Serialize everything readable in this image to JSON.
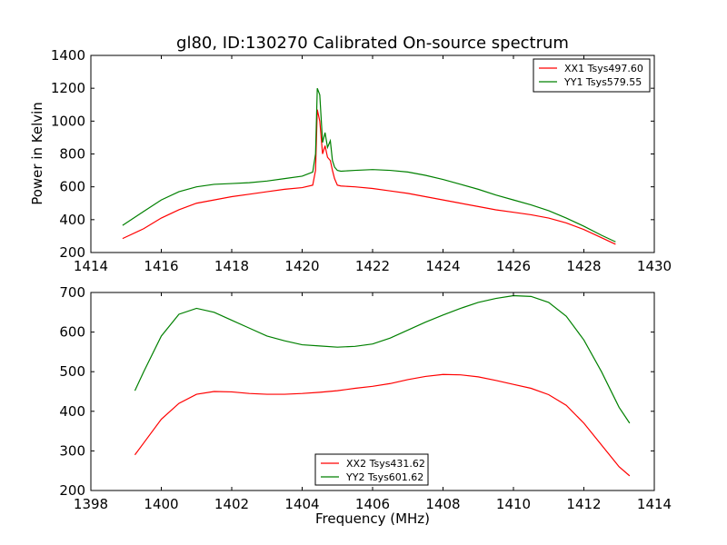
{
  "chart_data": [
    {
      "type": "line",
      "title": "gl80, ID:130270 Calibrated On-source spectrum",
      "xlabel": "",
      "ylabel": "Power in Kelvin",
      "xlim": [
        1414,
        1430
      ],
      "ylim": [
        200,
        1400
      ],
      "xticks": [
        "1414",
        "1416",
        "1418",
        "1420",
        "1422",
        "1424",
        "1426",
        "1428",
        "1430"
      ],
      "yticks": [
        "200",
        "400",
        "600",
        "800",
        "1000",
        "1200",
        "1400"
      ],
      "legend_position": "top-right",
      "grid": false,
      "series": [
        {
          "name": "XX1 Tsys497.60",
          "color": "#ff0000",
          "x": [
            1414.9,
            1415.5,
            1416.0,
            1416.5,
            1417.0,
            1417.5,
            1418.0,
            1418.5,
            1419.0,
            1419.5,
            1420.0,
            1420.3,
            1420.38,
            1420.43,
            1420.5,
            1420.58,
            1420.65,
            1420.72,
            1420.8,
            1420.86,
            1420.92,
            1421.0,
            1421.1,
            1421.5,
            1422.0,
            1422.5,
            1423.0,
            1423.5,
            1424.0,
            1424.5,
            1425.0,
            1425.5,
            1426.0,
            1426.5,
            1427.0,
            1427.5,
            1428.0,
            1428.5,
            1428.9
          ],
          "y": [
            285,
            345,
            410,
            460,
            500,
            520,
            540,
            555,
            570,
            585,
            595,
            610,
            700,
            1070,
            1000,
            800,
            850,
            780,
            760,
            700,
            650,
            610,
            605,
            600,
            590,
            575,
            560,
            540,
            520,
            500,
            480,
            460,
            445,
            430,
            410,
            380,
            340,
            290,
            250
          ]
        },
        {
          "name": "YY1 Tsys579.55",
          "color": "#008000",
          "x": [
            1414.9,
            1415.5,
            1416.0,
            1416.5,
            1417.0,
            1417.5,
            1418.0,
            1418.5,
            1419.0,
            1419.5,
            1420.0,
            1420.3,
            1420.38,
            1420.43,
            1420.5,
            1420.58,
            1420.65,
            1420.72,
            1420.8,
            1420.86,
            1420.92,
            1421.0,
            1421.1,
            1421.5,
            1422.0,
            1422.5,
            1423.0,
            1423.5,
            1424.0,
            1424.5,
            1425.0,
            1425.5,
            1426.0,
            1426.5,
            1427.0,
            1427.5,
            1428.0,
            1428.5,
            1428.9
          ],
          "y": [
            365,
            450,
            520,
            570,
            600,
            615,
            620,
            625,
            635,
            650,
            665,
            690,
            800,
            1200,
            1160,
            870,
            930,
            840,
            880,
            760,
            720,
            700,
            695,
            700,
            705,
            700,
            690,
            670,
            645,
            615,
            585,
            550,
            520,
            490,
            455,
            410,
            360,
            305,
            265
          ]
        }
      ]
    },
    {
      "type": "line",
      "title": "",
      "xlabel": "Frequency (MHz)",
      "ylabel": "",
      "xlim": [
        1398,
        1414
      ],
      "ylim": [
        200,
        700
      ],
      "xticks": [
        "1398",
        "1400",
        "1402",
        "1404",
        "1406",
        "1408",
        "1410",
        "1412",
        "1414"
      ],
      "yticks": [
        "200",
        "300",
        "400",
        "500",
        "600",
        "700"
      ],
      "legend_position": "bottom-center",
      "grid": false,
      "series": [
        {
          "name": "XX2 Tsys431.62",
          "color": "#ff0000",
          "x": [
            1399.25,
            1399.5,
            1400.0,
            1400.5,
            1401.0,
            1401.5,
            1402.0,
            1402.5,
            1403.0,
            1403.5,
            1404.0,
            1404.5,
            1405.0,
            1405.5,
            1406.0,
            1406.5,
            1407.0,
            1407.5,
            1408.0,
            1408.5,
            1409.0,
            1409.5,
            1410.0,
            1410.5,
            1411.0,
            1411.5,
            1412.0,
            1412.5,
            1413.0,
            1413.3
          ],
          "y": [
            290,
            320,
            380,
            420,
            443,
            450,
            449,
            445,
            443,
            443,
            445,
            448,
            452,
            458,
            463,
            470,
            480,
            488,
            493,
            492,
            487,
            478,
            468,
            458,
            442,
            415,
            370,
            315,
            260,
            237
          ]
        },
        {
          "name": "YY2 Tsys601.62",
          "color": "#008000",
          "x": [
            1399.25,
            1399.5,
            1400.0,
            1400.5,
            1401.0,
            1401.5,
            1402.0,
            1402.5,
            1403.0,
            1403.5,
            1404.0,
            1404.5,
            1405.0,
            1405.5,
            1406.0,
            1406.5,
            1407.0,
            1407.5,
            1408.0,
            1408.5,
            1409.0,
            1409.5,
            1410.0,
            1410.5,
            1411.0,
            1411.5,
            1412.0,
            1412.5,
            1413.0,
            1413.3
          ],
          "y": [
            452,
            500,
            590,
            645,
            660,
            650,
            630,
            610,
            590,
            578,
            568,
            565,
            562,
            564,
            570,
            585,
            605,
            625,
            643,
            660,
            675,
            685,
            692,
            690,
            675,
            640,
            580,
            500,
            410,
            370
          ]
        }
      ]
    }
  ]
}
